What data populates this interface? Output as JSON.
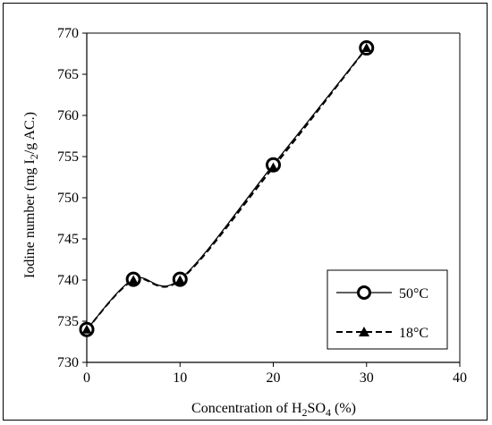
{
  "chart_data": {
    "type": "line",
    "title": "",
    "xlabel": {
      "pre": "Concentration of H",
      "sub1": "2",
      "mid": "SO",
      "sub2": "4",
      "post": " (%)"
    },
    "ylabel": {
      "pre": "Iodine number (mg  I",
      "sub": "2",
      "post": "/g AC.)"
    },
    "xlim": [
      0,
      40
    ],
    "ylim": [
      730,
      770
    ],
    "xticks": [
      0,
      10,
      20,
      30,
      40
    ],
    "yticks": [
      730,
      735,
      740,
      745,
      750,
      755,
      760,
      765,
      770
    ],
    "grid": false,
    "legend_position": "bottom-right",
    "series": [
      {
        "name": "50°C",
        "marker": "open-circle",
        "line": "solid",
        "color": "#000000",
        "x": [
          0,
          5,
          10,
          20,
          30
        ],
        "y": [
          734,
          740.1,
          740.1,
          754,
          768.2
        ]
      },
      {
        "name": "18°C",
        "marker": "filled-triangle",
        "line": "dashed",
        "color": "#000000",
        "x": [
          0,
          5,
          10,
          20,
          30
        ],
        "y": [
          734,
          740,
          740,
          753.7,
          768.2
        ]
      }
    ]
  }
}
